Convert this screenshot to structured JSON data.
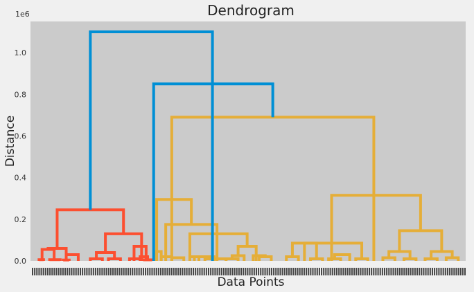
{
  "chart_data": {
    "type": "dendrogram",
    "title": "Dendrogram",
    "xlabel": "Data Points",
    "ylabel": "Distance",
    "y_offset_label": "1e6",
    "ylim": [
      0,
      1.15
    ],
    "yticks": [
      0.0,
      0.2,
      0.4,
      0.6,
      0.8,
      1.0
    ],
    "grid": false,
    "leaf_count_estimate": 200,
    "colors": {
      "red_cluster": "#fc4f30",
      "orange_cluster": "#e5ae38",
      "top_links": "#008fd5",
      "background": "#cbcbcb"
    },
    "links": [
      {
        "x": [
          0.0,
          1.5
        ],
        "h": 0.006,
        "c": "red_cluster"
      },
      {
        "x": [
          3.5,
          7.0
        ],
        "h": 0.006,
        "c": "red_cluster"
      },
      {
        "x": [
          1.0,
          5.0
        ],
        "h": 0.055,
        "c": "red_cluster"
      },
      {
        "x": [
          8.0,
          10.0
        ],
        "h": 0.004,
        "c": "red_cluster"
      },
      {
        "x": [
          9.0,
          13.0
        ],
        "h": 0.03,
        "c": "red_cluster"
      },
      {
        "x": [
          3.0,
          9.0
        ],
        "h": 0.06,
        "c": "red_cluster"
      },
      {
        "x": [
          17.0,
          21.0
        ],
        "h": 0.01,
        "c": "red_cluster"
      },
      {
        "x": [
          23.0,
          27.0
        ],
        "h": 0.01,
        "c": "red_cluster"
      },
      {
        "x": [
          19.0,
          25.0
        ],
        "h": 0.04,
        "c": "red_cluster"
      },
      {
        "x": [
          30.0,
          33.5
        ],
        "h": 0.01,
        "c": "red_cluster"
      },
      {
        "x": [
          31.5,
          35.5
        ],
        "h": 0.07,
        "c": "red_cluster"
      },
      {
        "x": [
          34.5,
          37.5
        ],
        "h": 0.005,
        "c": "red_cluster"
      },
      {
        "x": [
          33.5,
          36.0
        ],
        "h": 0.02,
        "c": "red_cluster"
      },
      {
        "x": [
          22.0,
          34.0
        ],
        "h": 0.13,
        "c": "red_cluster"
      },
      {
        "x": [
          6.0,
          28.0
        ],
        "h": 0.245,
        "c": "red_cluster"
      },
      {
        "x": [
          38.5,
          40.5
        ],
        "h": 0.045,
        "c": "orange_cluster"
      },
      {
        "x": [
          40.5,
          44.0
        ],
        "h": 0.02,
        "c": "orange_cluster"
      },
      {
        "x": [
          44.0,
          48.0
        ],
        "h": 0.015,
        "c": "orange_cluster"
      },
      {
        "x": [
          50.0,
          53.0
        ],
        "h": 0.02,
        "c": "orange_cluster"
      },
      {
        "x": [
          51.5,
          58.0
        ],
        "h": 0.02,
        "c": "orange_cluster"
      },
      {
        "x": [
          55.0,
          62.0
        ],
        "h": 0.01,
        "c": "orange_cluster"
      },
      {
        "x": [
          62.0,
          66.0
        ],
        "h": 0.01,
        "c": "orange_cluster"
      },
      {
        "x": [
          64.0,
          68.0
        ],
        "h": 0.025,
        "c": "orange_cluster"
      },
      {
        "x": [
          66.0,
          72.0
        ],
        "h": 0.07,
        "c": "orange_cluster"
      },
      {
        "x": [
          71.0,
          75.0
        ],
        "h": 0.025,
        "c": "orange_cluster"
      },
      {
        "x": [
          73.0,
          77.0
        ],
        "h": 0.02,
        "c": "orange_cluster"
      },
      {
        "x": [
          50.0,
          69.0
        ],
        "h": 0.13,
        "c": "orange_cluster"
      },
      {
        "x": [
          42.0,
          59.0
        ],
        "h": 0.175,
        "c": "orange_cluster"
      },
      {
        "x": [
          39.0,
          50.5
        ],
        "h": 0.295,
        "c": "orange_cluster"
      },
      {
        "x": [
          82.0,
          86.0
        ],
        "h": 0.02,
        "c": "orange_cluster"
      },
      {
        "x": [
          90.0,
          94.0
        ],
        "h": 0.01,
        "c": "orange_cluster"
      },
      {
        "x": [
          84.0,
          92.0
        ],
        "h": 0.085,
        "c": "orange_cluster"
      },
      {
        "x": [
          96.0,
          100.0
        ],
        "h": 0.01,
        "c": "orange_cluster"
      },
      {
        "x": [
          98.0,
          103.0
        ],
        "h": 0.03,
        "c": "orange_cluster"
      },
      {
        "x": [
          105.0,
          109.0
        ],
        "h": 0.01,
        "c": "orange_cluster"
      },
      {
        "x": [
          88.0,
          107.0
        ],
        "h": 0.085,
        "c": "orange_cluster"
      },
      {
        "x": [
          114.0,
          118.0
        ],
        "h": 0.015,
        "c": "orange_cluster"
      },
      {
        "x": [
          121.0,
          125.0
        ],
        "h": 0.01,
        "c": "orange_cluster"
      },
      {
        "x": [
          116.0,
          123.0
        ],
        "h": 0.045,
        "c": "orange_cluster"
      },
      {
        "x": [
          128.0,
          132.0
        ],
        "h": 0.01,
        "c": "orange_cluster"
      },
      {
        "x": [
          135.0,
          139.0
        ],
        "h": 0.015,
        "c": "orange_cluster"
      },
      {
        "x": [
          130.0,
          137.0
        ],
        "h": 0.045,
        "c": "orange_cluster"
      },
      {
        "x": [
          119.5,
          133.5
        ],
        "h": 0.145,
        "c": "orange_cluster"
      },
      {
        "x": [
          97.0,
          126.5
        ],
        "h": 0.315,
        "c": "orange_cluster"
      },
      {
        "x": [
          44.0,
          111.0
        ],
        "h": 0.69,
        "c": "orange_cluster"
      },
      {
        "x": [
          38.0,
          77.5
        ],
        "h": 0.85,
        "c": "top_links"
      },
      {
        "x": [
          17.0,
          57.5
        ],
        "h": 1.1,
        "c": "top_links"
      }
    ]
  }
}
